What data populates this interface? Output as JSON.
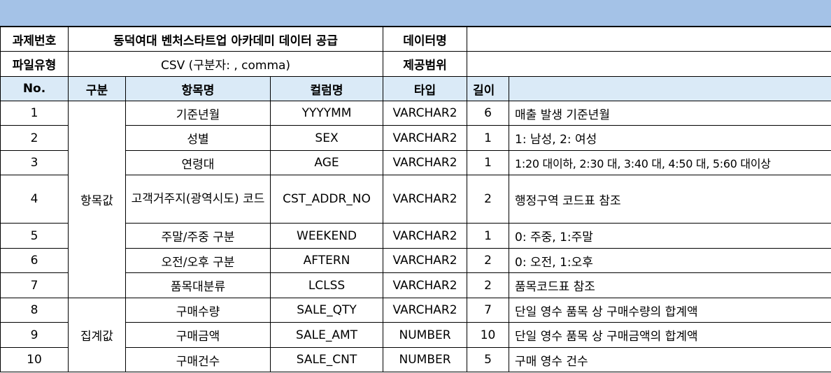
{
  "meta": {
    "assignment_label": "과제번호",
    "assignment_value": "동덕여대 벤처스타트업 아카데미 데이터 공급",
    "dataname_label": "데이터명",
    "dataname_value": "",
    "filetype_label": "파일유형",
    "filetype_value": "CSV (구분자: , comma)",
    "scope_label": "제공범위",
    "scope_value": ""
  },
  "columns": [
    "No.",
    "구분",
    "항목명",
    "컬럼명",
    "타입",
    "길이",
    ""
  ],
  "groups": [
    "항목값",
    "집계값"
  ],
  "rows": [
    {
      "no": "1",
      "name": "기준년월",
      "column": "YYYYMM",
      "type": "VARCHAR2",
      "length": "6",
      "desc": "매출 발생 기준년월"
    },
    {
      "no": "2",
      "name": "성별",
      "column": "SEX",
      "type": "VARCHAR2",
      "length": "1",
      "desc": "1: 남성, 2: 여성"
    },
    {
      "no": "3",
      "name": "연령대",
      "column": "AGE",
      "type": "VARCHAR2",
      "length": "1",
      "desc": "1:20 대이하, 2:30 대, 3:40 대, 4:50 대, 5:60 대이상"
    },
    {
      "no": "4",
      "name": "고객거주지(광역시도) 코드",
      "column": "CST_ADDR_NO",
      "type": "VARCHAR2",
      "length": "2",
      "desc": "행정구역 코드표 참조"
    },
    {
      "no": "5",
      "name": "주말/주중 구분",
      "column": "WEEKEND",
      "type": "VARCHAR2",
      "length": "1",
      "desc": "0: 주중, 1:주말"
    },
    {
      "no": "6",
      "name": "오전/오후 구분",
      "column": "AFTERN",
      "type": "VARCHAR2",
      "length": "2",
      "desc": "0: 오전, 1:오후"
    },
    {
      "no": "7",
      "name": "품목대분류",
      "column": "LCLSS",
      "type": "VARCHAR2",
      "length": "2",
      "desc": "품목코드표 참조"
    },
    {
      "no": "8",
      "name": "구매수량",
      "column": "SALE_QTY",
      "type": "VARCHAR2",
      "length": "7",
      "desc": "단일 영수 품목 상 구매수량의 합계액"
    },
    {
      "no": "9",
      "name": "구매금액",
      "column": "SALE_AMT",
      "type": "NUMBER",
      "length": "10",
      "desc": "단일 영수 품목 상 구매금액의 합계액"
    },
    {
      "no": "10",
      "name": "구매건수",
      "column": "SALE_CNT",
      "type": "NUMBER",
      "length": "5",
      "desc": "구매 영수 건수"
    }
  ],
  "colors": {
    "topbar": "#a4c2e7",
    "header_bg": "#daeaf7"
  }
}
